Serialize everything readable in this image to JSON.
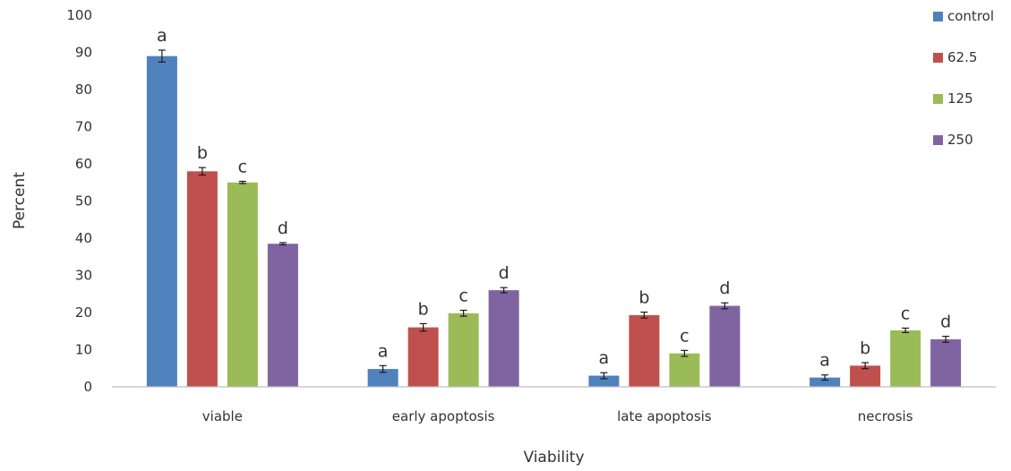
{
  "chart_data": {
    "type": "bar",
    "xlabel": "Viability",
    "ylabel": "Percent",
    "ylim": [
      0,
      100
    ],
    "yticks": [
      0,
      10,
      20,
      30,
      40,
      50,
      60,
      70,
      80,
      90,
      100
    ],
    "grid": false,
    "legend_position": "top-right",
    "categories": [
      "viable",
      "early apoptosis",
      "late apoptosis",
      "necrosis"
    ],
    "series": [
      {
        "name": "control",
        "color": "#4F81BD",
        "values": [
          89,
          4.8,
          3,
          2.5
        ],
        "errors": [
          1.6,
          0.9,
          0.8,
          0.7
        ],
        "letters": [
          "a",
          "a",
          "a",
          "a"
        ]
      },
      {
        "name": "62.5",
        "color": "#C0504D",
        "values": [
          58,
          16,
          19.3,
          5.7
        ],
        "errors": [
          1.0,
          1.0,
          0.8,
          0.8
        ],
        "letters": [
          "b",
          "b",
          "b",
          "b"
        ]
      },
      {
        "name": "125",
        "color": "#9BBB59",
        "values": [
          55,
          19.8,
          9,
          15.2
        ],
        "errors": [
          0.3,
          0.8,
          0.8,
          0.6
        ],
        "letters": [
          "c",
          "c",
          "c",
          "c"
        ]
      },
      {
        "name": "250",
        "color": "#8064A2",
        "values": [
          38.5,
          26,
          21.8,
          12.8
        ],
        "errors": [
          0.3,
          0.7,
          0.8,
          0.8
        ],
        "letters": [
          "d",
          "d",
          "d",
          "d"
        ]
      }
    ]
  }
}
